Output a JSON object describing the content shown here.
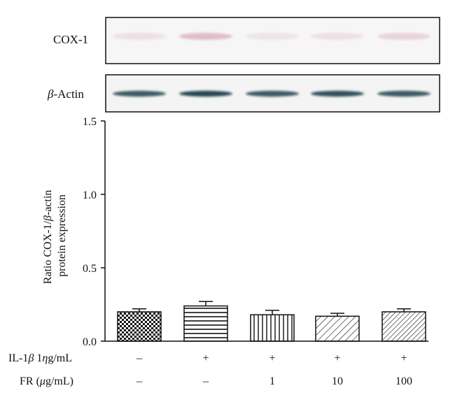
{
  "blots": [
    {
      "label": "COX-1",
      "label_html_italic": false,
      "intensity": [
        0.18,
        0.45,
        0.15,
        0.18,
        0.28
      ]
    },
    {
      "label": "β-Actin",
      "italic_prefix": "β",
      "rest": "-Actin",
      "intensity": [
        0.85,
        0.95,
        0.85,
        0.9,
        0.85
      ]
    }
  ],
  "conditions": [
    {
      "label": "IL-1β 1ηg/mL",
      "values": [
        "–",
        "+",
        "+",
        "+",
        "+"
      ]
    },
    {
      "label": "FR (μg/mL)",
      "values": [
        "–",
        "–",
        "1",
        "10",
        "100"
      ]
    }
  ],
  "chart_data": {
    "type": "bar",
    "categories": [
      "1",
      "2",
      "3",
      "4",
      "5"
    ],
    "values": [
      0.2,
      0.24,
      0.18,
      0.17,
      0.2
    ],
    "errors": [
      0.02,
      0.03,
      0.03,
      0.02,
      0.02
    ],
    "patterns": [
      "checker",
      "horizontal",
      "vertical",
      "diagonal-sparse",
      "diagonal-dense"
    ],
    "ylabel": "Ratio COX-1/β-actin protein expression",
    "ylabel_lines": [
      "Ratio COX-1/β-actin",
      "protein expression"
    ],
    "ylim": [
      0,
      1.5
    ],
    "yticks": [
      "0.0",
      "0.5",
      "1.0",
      "1.5"
    ],
    "ytick_values": [
      0,
      0.5,
      1.0,
      1.5
    ],
    "grid": false
  }
}
